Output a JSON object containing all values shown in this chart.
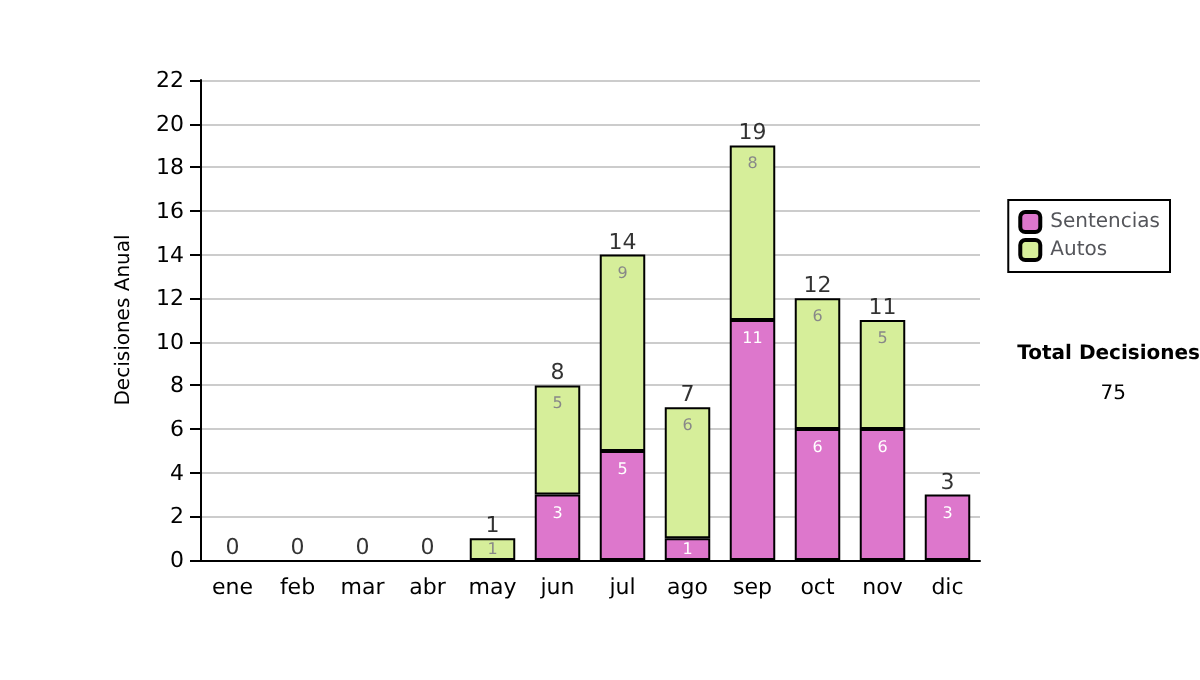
{
  "chart_data": {
    "type": "bar",
    "stacked": true,
    "ylabel": "Decisiones Anual",
    "categories": [
      "ene",
      "feb",
      "mar",
      "abr",
      "may",
      "jun",
      "jul",
      "ago",
      "sep",
      "oct",
      "nov",
      "dic"
    ],
    "series": [
      {
        "name": "Sentencias",
        "color": "#dd77cc",
        "values": [
          0,
          0,
          0,
          0,
          0,
          3,
          5,
          1,
          11,
          6,
          6,
          3
        ],
        "value_labels": [
          null,
          null,
          null,
          null,
          null,
          "3",
          "5",
          "1",
          "11",
          "6",
          "6",
          "3"
        ]
      },
      {
        "name": "Autos",
        "color": "#d6ee9a",
        "values": [
          0,
          0,
          0,
          0,
          1,
          5,
          9,
          6,
          8,
          6,
          5,
          0
        ],
        "value_labels": [
          null,
          null,
          null,
          null,
          "1",
          "5",
          "9",
          "6",
          "8",
          "6",
          "5",
          null
        ]
      }
    ],
    "totals": [
      "0",
      "0",
      "0",
      "0",
      "1",
      "8",
      "14",
      "7",
      "19",
      "12",
      "11",
      "3"
    ],
    "ylim": [
      0,
      22
    ],
    "yticks": [
      0,
      2,
      4,
      6,
      8,
      10,
      12,
      14,
      16,
      18,
      20,
      22
    ],
    "grid": "y",
    "legend": "right",
    "annotations": [
      "Total Decisiones",
      "75"
    ]
  }
}
